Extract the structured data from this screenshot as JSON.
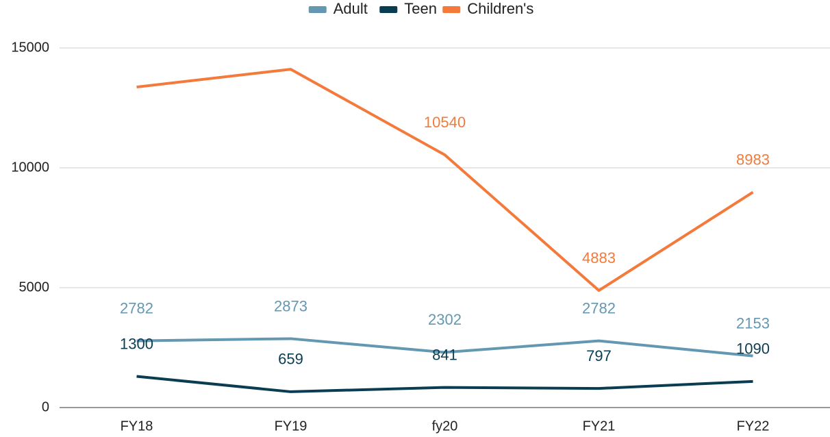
{
  "chart_data": {
    "type": "line",
    "categories": [
      "FY18",
      "FY19",
      "fy20",
      "FY21",
      "FY22"
    ],
    "series": [
      {
        "name": "Adult",
        "color": "#6497b1",
        "values": [
          2782,
          2873,
          2302,
          2782,
          2153
        ]
      },
      {
        "name": "Teen",
        "color": "#0b3d52",
        "values": [
          1300,
          659,
          841,
          797,
          1090
        ]
      },
      {
        "name": "Children's",
        "color": "#f47a3c",
        "values": [
          13370,
          14110,
          10540,
          4883,
          8983
        ],
        "value_labels": [
          null,
          null,
          "10540",
          "4883",
          "8983"
        ]
      }
    ],
    "ylim": [
      0,
      15000
    ],
    "yticks": [
      0,
      5000,
      10000,
      15000
    ],
    "grid": true,
    "legend": "top"
  }
}
